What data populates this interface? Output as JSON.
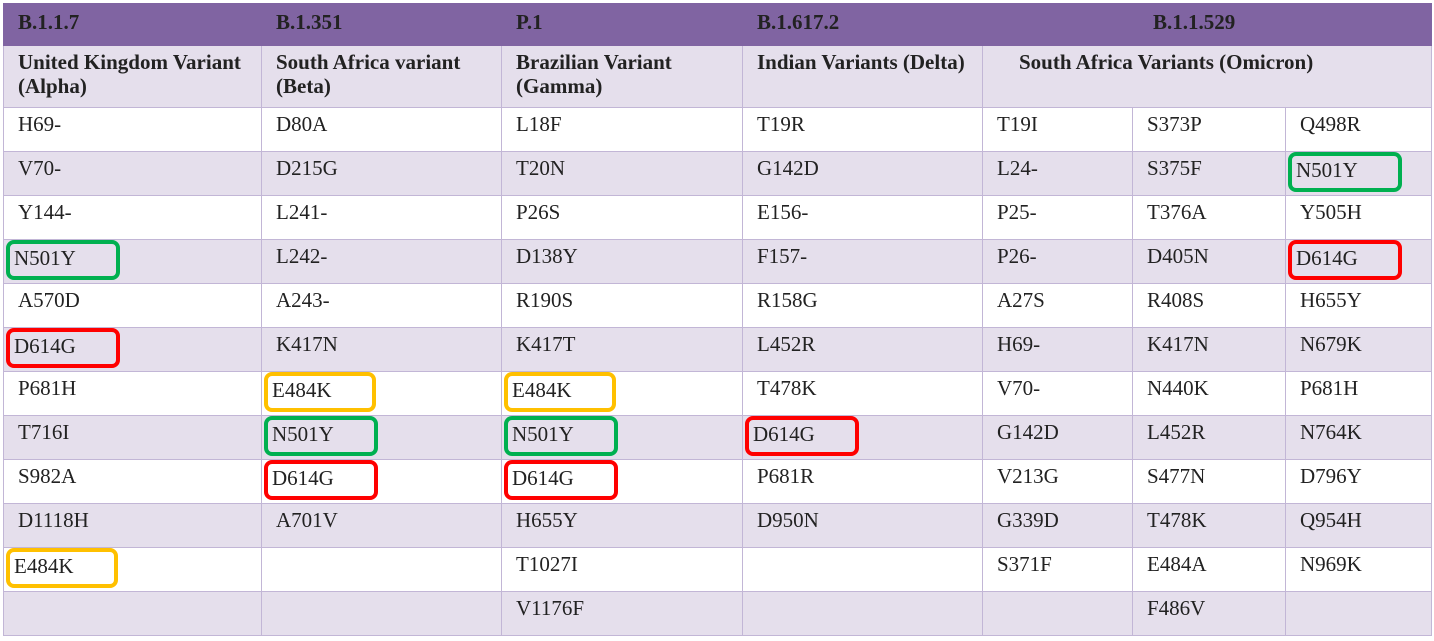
{
  "header": {
    "codes": [
      "B.1.1.7",
      "B.1.351",
      "P.1",
      "B.1.617.2",
      "B.1.1.529"
    ],
    "names": [
      "United Kingdom Variant (Alpha)",
      "South Africa variant (Beta)",
      "Brazilian Variant (Gamma)",
      "Indian Variants (Delta)",
      "South Africa Variants (Omicron)"
    ]
  },
  "table": {
    "rows": [
      [
        "H69-",
        "D80A",
        "L18F",
        "T19R",
        "T19I",
        "S373P",
        "Q498R"
      ],
      [
        "V70-",
        "D215G",
        "T20N",
        "G142D",
        "L24-",
        "S375F",
        "N501Y"
      ],
      [
        "Y144-",
        "L241-",
        "P26S",
        "E156-",
        "P25-",
        "T376A",
        "Y505H"
      ],
      [
        "N501Y",
        "L242-",
        "D138Y",
        "F157-",
        "P26-",
        "D405N",
        "D614G"
      ],
      [
        "A570D",
        "A243-",
        "R190S",
        "R158G",
        "A27S",
        "R408S",
        "H655Y"
      ],
      [
        "D614G",
        "K417N",
        "K417T",
        "L452R",
        "H69-",
        "K417N",
        "N679K"
      ],
      [
        "P681H",
        "E484K",
        "E484K",
        "T478K",
        "V70-",
        "N440K",
        "P681H"
      ],
      [
        "T716I",
        "N501Y",
        "N501Y",
        "D614G",
        "G142D",
        "L452R",
        "N764K"
      ],
      [
        "S982A",
        "D614G",
        "D614G",
        "P681R",
        "V213G",
        "S477N",
        "D796Y"
      ],
      [
        "D1118H",
        "A701V",
        "H655Y",
        "D950N",
        "G339D",
        "T478K",
        "Q954H"
      ],
      [
        "E484K",
        null,
        "T1027I",
        null,
        "S371F",
        "E484A",
        "N969K"
      ],
      [
        null,
        null,
        "V1176F",
        null,
        null,
        "F486V",
        null
      ]
    ]
  }
}
